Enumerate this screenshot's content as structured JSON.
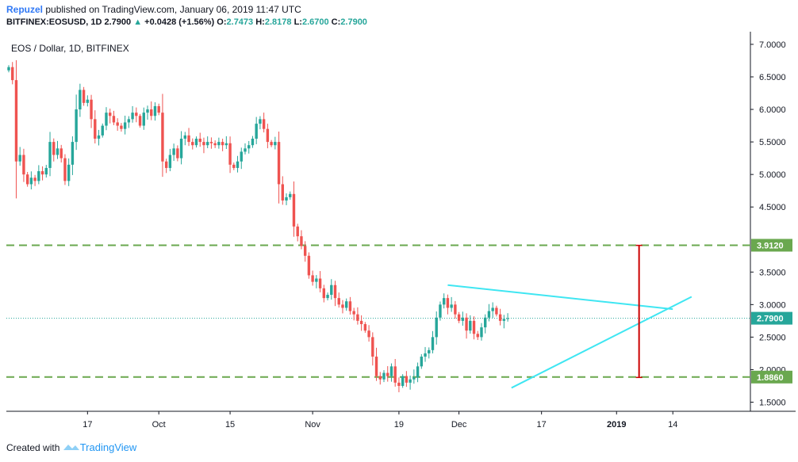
{
  "header": {
    "author": "Repuzel",
    "published": "published on TradingView.com, January 06, 2019 11:47 UTC",
    "symbol": "BITFINEX:EOSUSD, 1D",
    "last": "2.7900",
    "arrow": "▲",
    "change": "+0.0428 (+1.56%)",
    "o_label": "O:",
    "o": "2.7473",
    "h_label": "H:",
    "h": "2.8178",
    "l_label": "L:",
    "l": "2.6700",
    "c_label": "C:",
    "c": "2.7900"
  },
  "footer": {
    "created_with": "Created with",
    "brand": "TradingView"
  },
  "colors": {
    "up": "#26a69a",
    "down": "#ef5350",
    "trendline": "#3fe6f2",
    "level_line": "#6aa84f",
    "level_label_bg": "#6aa84f",
    "price_label_bg": "#26a69a",
    "arrow": "#cc0000",
    "axis": "#131722",
    "tick_text": "#131722"
  },
  "chart_data": {
    "type": "candlestick",
    "title": "EOS / Dollar, 1D, BITFINEX",
    "ylim": [
      1.25,
      7.0
    ],
    "y_ticks": [
      "7.0000",
      "6.5000",
      "6.0000",
      "5.5000",
      "5.0000",
      "4.5000",
      "3.5000",
      "3.0000",
      "2.5000",
      "2.0000",
      "1.5000"
    ],
    "x_ticks": [
      {
        "index": 21,
        "label": "17"
      },
      {
        "index": 40,
        "label": "Oct"
      },
      {
        "index": 59,
        "label": "15"
      },
      {
        "index": 81,
        "label": "Nov"
      },
      {
        "index": 104,
        "label": "19"
      },
      {
        "index": 120,
        "label": "Dec"
      },
      {
        "index": 142,
        "label": "17"
      },
      {
        "index": 162,
        "label": "2019"
      },
      {
        "index": 177,
        "label": "14"
      }
    ],
    "n_slots": 189,
    "first_open": 6.6,
    "closes": [
      6.65,
      6.45,
      5.2,
      5.3,
      5.0,
      4.85,
      4.95,
      4.9,
      5.05,
      5.0,
      5.1,
      5.5,
      5.3,
      5.4,
      5.25,
      4.9,
      5.15,
      5.5,
      6.0,
      6.3,
      6.1,
      6.15,
      5.85,
      5.55,
      5.6,
      5.75,
      5.95,
      5.9,
      5.8,
      5.75,
      5.7,
      5.8,
      5.85,
      5.95,
      5.9,
      5.75,
      5.95,
      6.0,
      5.9,
      6.05,
      5.95,
      5.2,
      5.1,
      5.3,
      5.4,
      5.25,
      5.55,
      5.6,
      5.5,
      5.45,
      5.55,
      5.5,
      5.45,
      5.5,
      5.48,
      5.45,
      5.5,
      5.45,
      5.48,
      5.15,
      5.1,
      5.2,
      5.35,
      5.4,
      5.45,
      5.55,
      5.78,
      5.85,
      5.7,
      5.5,
      5.45,
      5.5,
      4.85,
      4.6,
      4.65,
      4.7,
      4.2,
      4.05,
      3.9,
      3.75,
      3.45,
      3.35,
      3.4,
      3.25,
      3.1,
      3.15,
      3.3,
      3.1,
      3.0,
      2.95,
      3.05,
      2.9,
      2.85,
      2.75,
      2.7,
      2.6,
      2.5,
      2.2,
      1.9,
      1.85,
      1.95,
      1.9,
      2.05,
      1.8,
      1.75,
      1.9,
      1.8,
      1.85,
      1.88,
      2.05,
      2.2,
      2.25,
      2.3,
      2.5,
      2.8,
      3.0,
      3.1,
      2.95,
      3.0,
      2.85,
      2.75,
      2.8,
      2.6,
      2.75,
      2.55,
      2.5,
      2.65,
      2.8,
      2.9,
      2.95,
      2.85,
      2.75,
      2.78,
      2.79
    ],
    "level_lines": [
      {
        "value": 3.912,
        "label": "3.9120"
      },
      {
        "value": 1.886,
        "label": "1.8860"
      }
    ],
    "last_price": {
      "value": 2.79,
      "label": "2.7900"
    },
    "trendlines": [
      {
        "from": [
          117,
          3.3
        ],
        "to": [
          177,
          2.93
        ]
      },
      {
        "from": [
          134,
          1.72
        ],
        "to": [
          182,
          3.12
        ]
      }
    ],
    "arrow": {
      "index": 168,
      "from": 3.91,
      "to": 1.88
    }
  }
}
